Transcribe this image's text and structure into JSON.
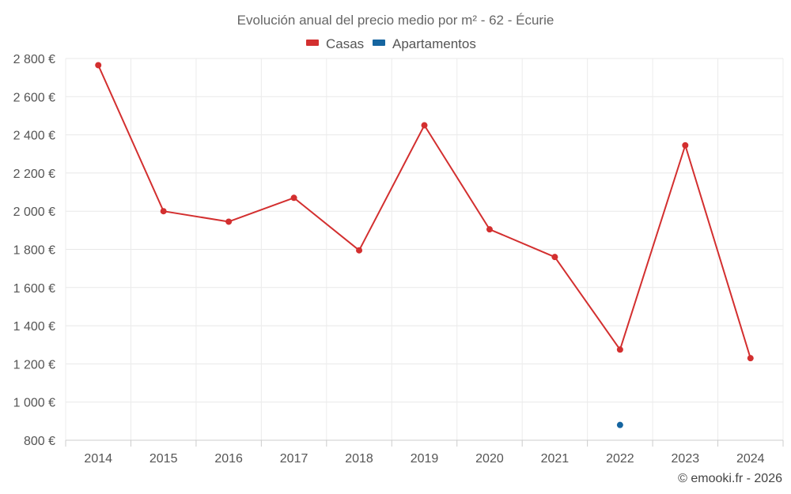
{
  "chart_data": {
    "type": "line",
    "title": "Evolución anual del precio medio por m² - 62 - Écurie",
    "categories": [
      "2014",
      "2015",
      "2016",
      "2017",
      "2018",
      "2019",
      "2020",
      "2021",
      "2022",
      "2023",
      "2024"
    ],
    "series": [
      {
        "name": "Casas",
        "color": "#d32f2f",
        "values": [
          2765,
          2000,
          1945,
          2070,
          1795,
          2450,
          1905,
          1760,
          1275,
          2345,
          1230
        ]
      },
      {
        "name": "Apartamentos",
        "color": "#1565a0",
        "values": [
          null,
          null,
          null,
          null,
          null,
          null,
          null,
          null,
          880,
          null,
          null
        ]
      }
    ],
    "ylim": [
      800,
      2800
    ],
    "yticks": [
      800,
      1000,
      1200,
      1400,
      1600,
      1800,
      2000,
      2200,
      2400,
      2600,
      2800
    ],
    "ytick_labels": [
      "800 €",
      "1 000 €",
      "1 200 €",
      "1 400 €",
      "1 600 €",
      "1 800 €",
      "2 000 €",
      "2 200 €",
      "2 400 €",
      "2 600 €",
      "2 800 €"
    ],
    "legend_position": "top-center",
    "grid": true
  },
  "credit": "© emooki.fr - 2026"
}
